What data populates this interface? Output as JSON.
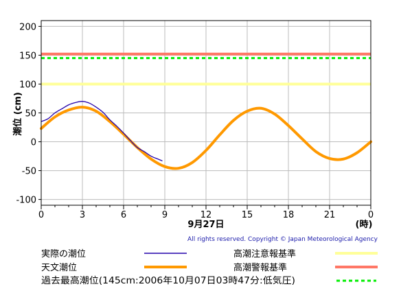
{
  "chart_data": {
    "type": "line",
    "ylabel": "潮位 (cm)",
    "date_label": "9月27日",
    "x_unit_label": "(時)",
    "xlim": [
      0,
      24
    ],
    "ylim": [
      -110,
      210
    ],
    "x_ticks": [
      "0",
      "3",
      "6",
      "9",
      "12",
      "15",
      "18",
      "21",
      "0"
    ],
    "y_ticks": [
      "200",
      "150",
      "100",
      "50",
      "0",
      "-50",
      "-100"
    ],
    "grid": true,
    "copyright": "All rights reserved. Copyright © Japan Meteorological Agency",
    "thresholds": [
      {
        "name": "高潮注意報基準",
        "value": 100,
        "color": "#ffff99",
        "style": "solid"
      },
      {
        "name": "高潮警報基準",
        "value": 152,
        "color": "#ff7766",
        "style": "solid"
      },
      {
        "name": "過去最高潮位(145cm:2006年10月07日03時47分:低気圧)",
        "value": 145,
        "color": "#00ee00",
        "style": "dashed"
      }
    ],
    "series": [
      {
        "name": "天文潮位",
        "color": "#ff9900",
        "x": [
          0,
          1,
          2,
          3,
          4,
          5,
          6,
          7,
          8,
          9,
          10,
          11,
          12,
          13,
          14,
          15,
          16,
          17,
          18,
          19,
          20,
          21,
          22,
          23,
          24
        ],
        "y": [
          23,
          43,
          55,
          60,
          53,
          35,
          13,
          -10,
          -30,
          -43,
          -46,
          -36,
          -15,
          12,
          37,
          53,
          58,
          48,
          28,
          5,
          -17,
          -29,
          -30,
          -19,
          0
        ]
      },
      {
        "name": "実際の潮位",
        "color": "#2200aa",
        "x": [
          0,
          0.5,
          1,
          1.5,
          2,
          2.5,
          3,
          3.5,
          4,
          4.5,
          5,
          5.5,
          6,
          6.5,
          7,
          7.5,
          8,
          8.5,
          8.8
        ],
        "y": [
          35,
          40,
          50,
          57,
          64,
          68,
          70,
          67,
          60,
          51,
          38,
          27,
          15,
          2,
          -10,
          -17,
          -25,
          -30,
          -33
        ]
      }
    ]
  },
  "legend": {
    "actual": "実際の潮位",
    "astro": "天文潮位",
    "caution": "高潮注意報基準",
    "warning": "高潮警報基準",
    "record": "過去最高潮位(145cm:2006年10月07日03時47分:低気圧)"
  }
}
